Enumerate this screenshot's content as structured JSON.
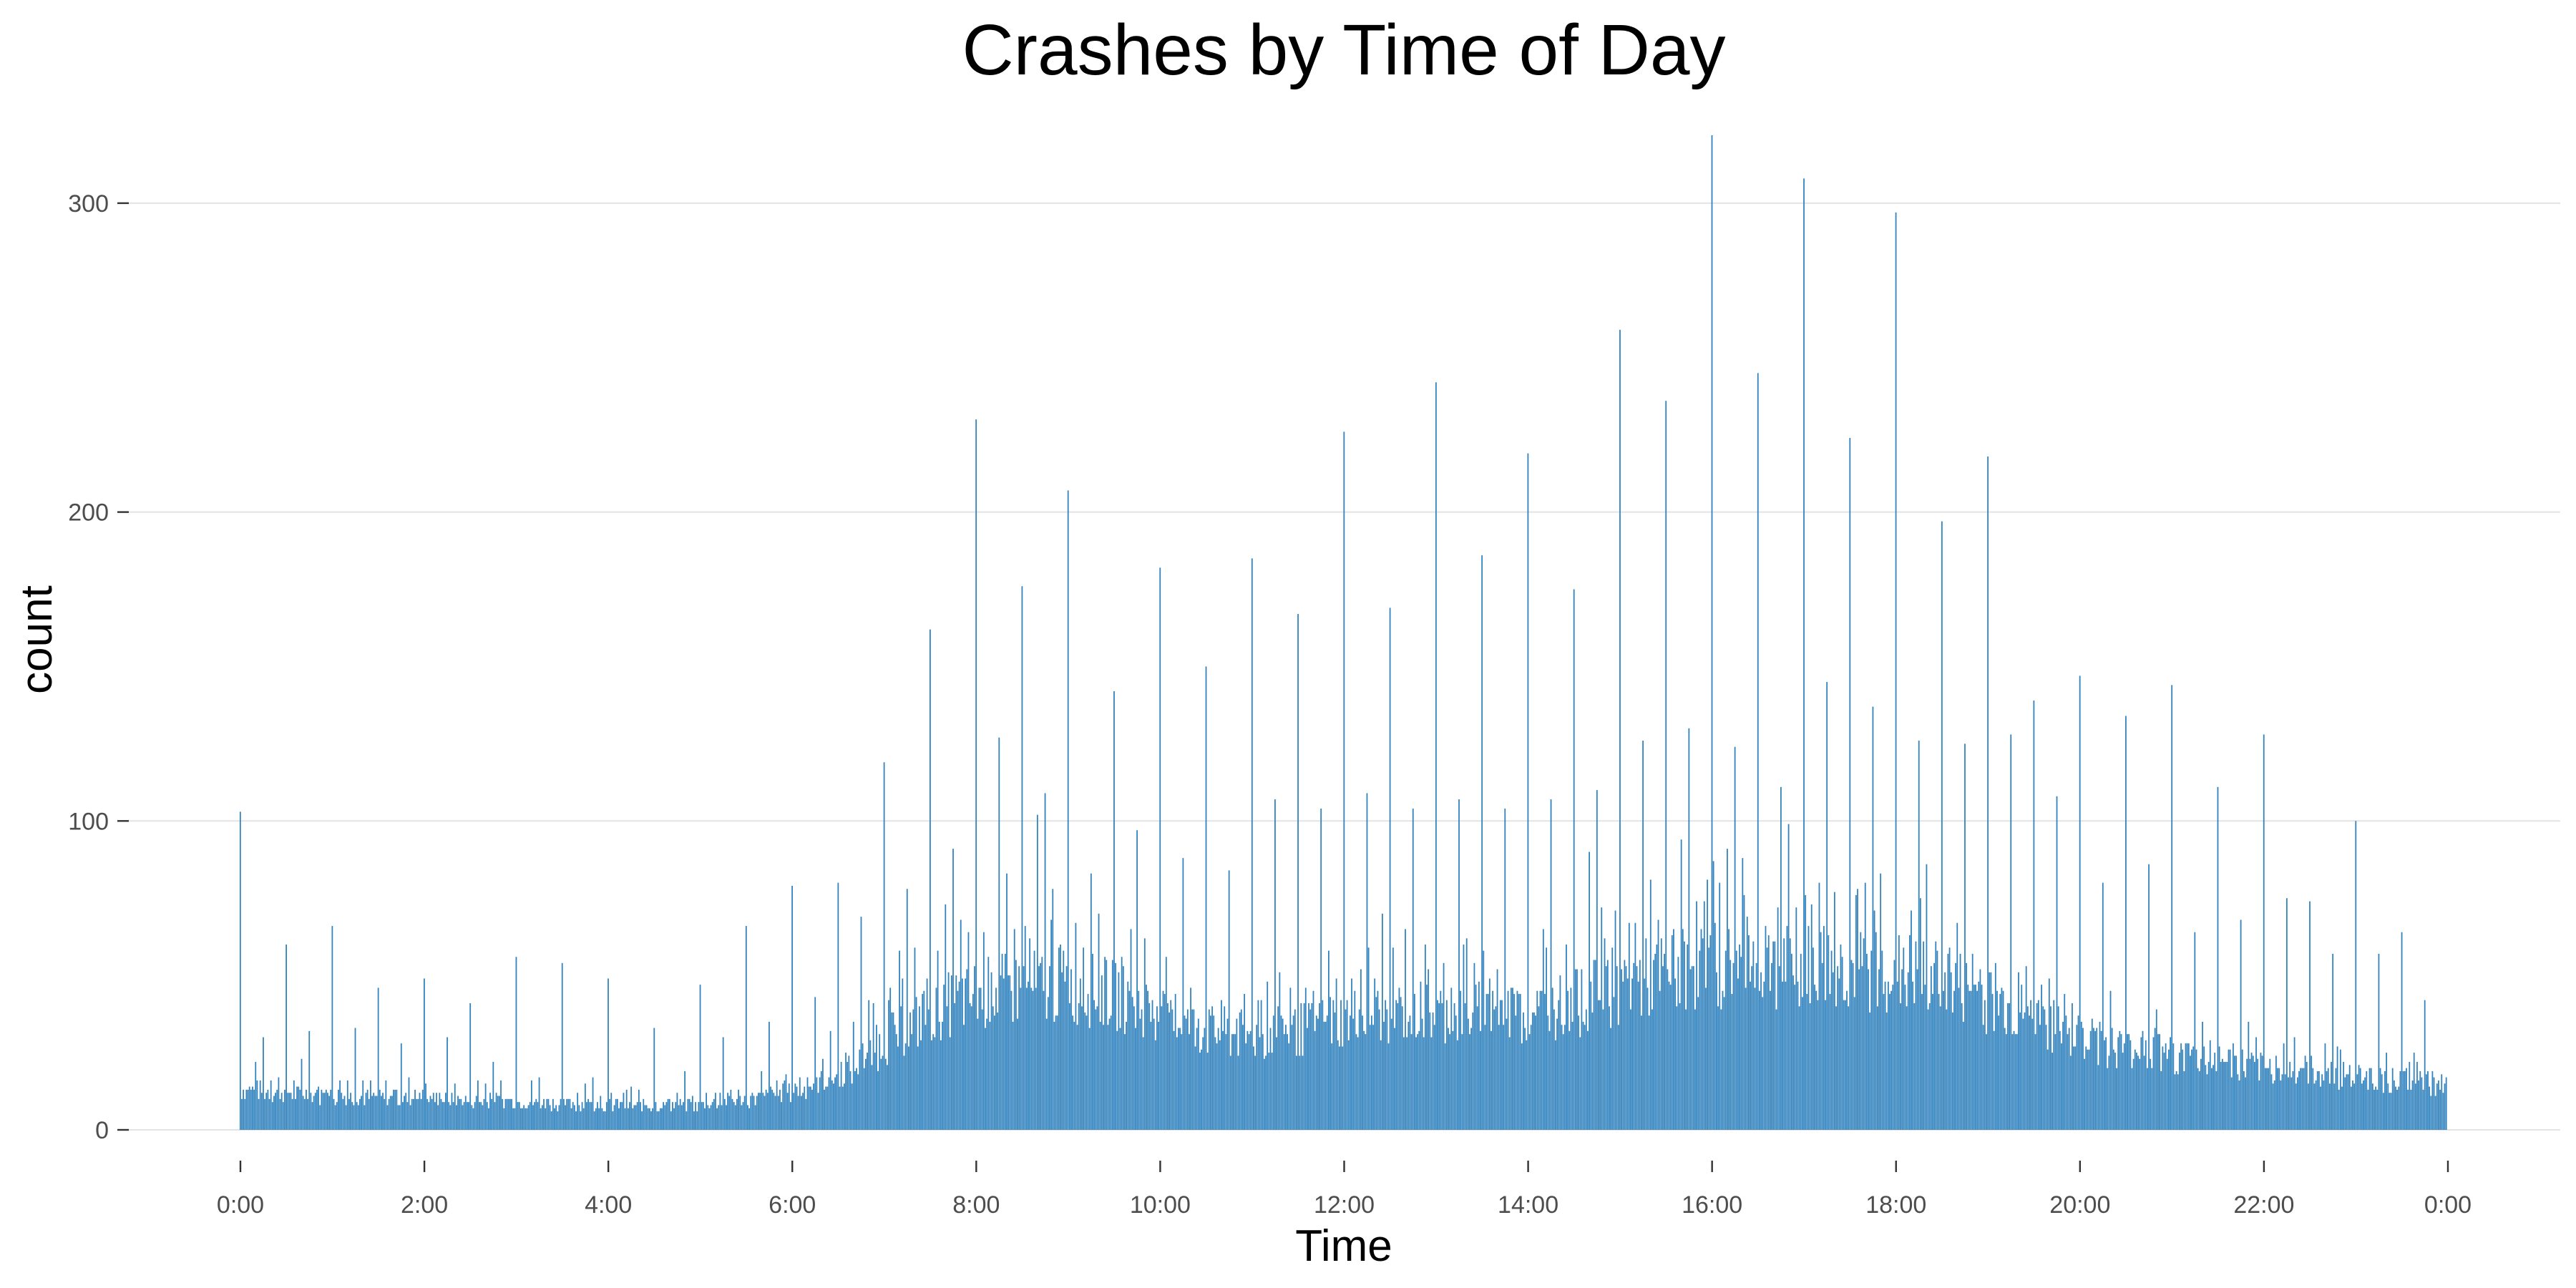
{
  "chart_data": {
    "type": "bar",
    "title": "Crashes by Time of Day",
    "xlabel": "Time",
    "ylabel": "count",
    "bar_color": "#3182bd",
    "grid": "horizontal major",
    "legend": "none",
    "bin_minutes": 1,
    "xlim_minutes": [
      0,
      1440
    ],
    "ylim": [
      0,
      325
    ],
    "x_ticks_minutes": [
      0,
      120,
      240,
      360,
      480,
      600,
      720,
      840,
      960,
      1080,
      1200,
      1320,
      1440
    ],
    "x_tick_labels": [
      "0:00",
      "2:00",
      "4:00",
      "6:00",
      "8:00",
      "10:00",
      "12:00",
      "14:00",
      "16:00",
      "18:00",
      "20:00",
      "22:00",
      "0:00"
    ],
    "y_ticks": [
      0,
      100,
      200,
      300
    ],
    "y_tick_labels": [
      "0",
      "100",
      "200",
      "300"
    ],
    "baseline_profile": {
      "x_minutes": [
        0,
        60,
        120,
        180,
        240,
        300,
        360,
        400,
        420,
        450,
        480,
        510,
        540,
        570,
        600,
        630,
        660,
        690,
        720,
        750,
        780,
        810,
        840,
        870,
        900,
        930,
        960,
        990,
        1020,
        1050,
        1080,
        1110,
        1140,
        1170,
        1200,
        1230,
        1260,
        1290,
        1320,
        1350,
        1380,
        1410,
        1439
      ],
      "counts": [
        13,
        11,
        10,
        9,
        8,
        8,
        12,
        20,
        28,
        38,
        44,
        46,
        47,
        44,
        36,
        32,
        30,
        32,
        36,
        38,
        38,
        38,
        38,
        41,
        47,
        50,
        54,
        54,
        53,
        52,
        51,
        48,
        42,
        36,
        30,
        26,
        24,
        22,
        20,
        19,
        17,
        16,
        14
      ]
    },
    "spikes": {
      "x_minutes": [
        0,
        30,
        60,
        90,
        120,
        150,
        180,
        210,
        240,
        270,
        300,
        330,
        360,
        390,
        420,
        450,
        480,
        510,
        540,
        570,
        600,
        630,
        660,
        690,
        720,
        750,
        780,
        810,
        840,
        870,
        900,
        930,
        960,
        990,
        1020,
        1050,
        1080,
        1110,
        1140,
        1170,
        1200,
        1230,
        1260,
        1290,
        1320,
        1350,
        1380,
        1410
      ],
      "counts": [
        103,
        60,
        66,
        46,
        49,
        41,
        56,
        54,
        49,
        33,
        47,
        66,
        79,
        80,
        119,
        162,
        230,
        176,
        207,
        142,
        182,
        150,
        185,
        167,
        226,
        169,
        242,
        186,
        219,
        175,
        259,
        236,
        322,
        245,
        308,
        224,
        297,
        197,
        218,
        139,
        147,
        134,
        144,
        111,
        128,
        74,
        100,
        64
      ]
    },
    "minor_spikes": {
      "x_minutes": [
        15,
        45,
        75,
        105,
        135,
        165,
        195,
        225,
        255,
        285,
        315,
        345,
        375,
        405,
        435,
        465,
        495,
        525,
        555,
        585,
        615,
        645,
        675,
        705,
        735,
        765,
        795,
        825,
        855,
        885,
        915,
        945,
        975,
        1005,
        1035,
        1065,
        1095,
        1125,
        1155,
        1185,
        1215,
        1245,
        1275,
        1305,
        1335,
        1365,
        1395,
        1425
      ],
      "counts": [
        30,
        32,
        33,
        28,
        30,
        22,
        17,
        15,
        14,
        12,
        30,
        35,
        43,
        69,
        78,
        91,
        127,
        109,
        83,
        97,
        88,
        84,
        107,
        104,
        109,
        104,
        107,
        104,
        107,
        110,
        126,
        130,
        124,
        111,
        145,
        137,
        126,
        125,
        128,
        108,
        80,
        86,
        64,
        68,
        75,
        57,
        57,
        42
      ]
    }
  }
}
